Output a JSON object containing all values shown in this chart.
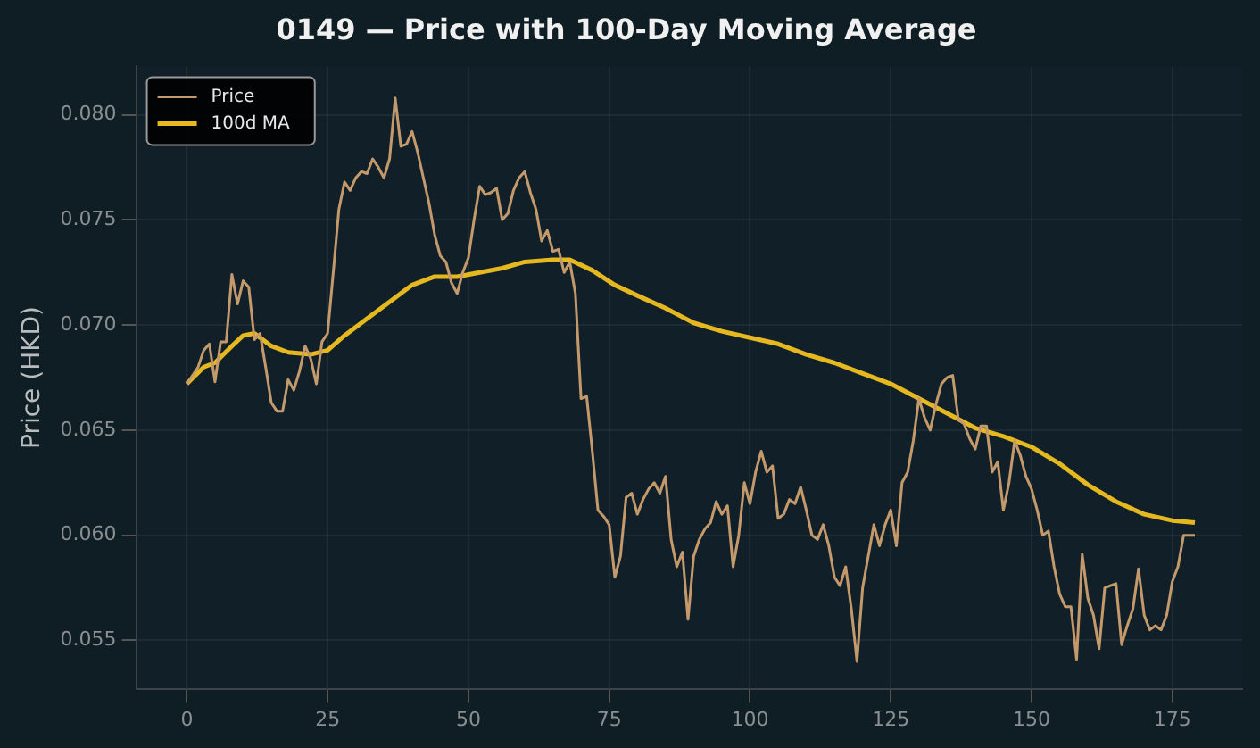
{
  "chart_data": {
    "type": "line",
    "title": "0149 — Price with 100-Day Moving Average",
    "ylabel": "Price (HKD)",
    "xlim": [
      -9,
      187.4
    ],
    "xticks": [
      0,
      25,
      50,
      75,
      100,
      125,
      150,
      175
    ],
    "ylim": [
      0.0527,
      0.0823
    ],
    "yticks": [
      {
        "value": 0.055,
        "label": "0.055"
      },
      {
        "value": 0.06,
        "label": "0.060"
      },
      {
        "value": 0.065,
        "label": "0.065"
      },
      {
        "value": 0.07,
        "label": "0.070"
      },
      {
        "value": 0.075,
        "label": "0.075"
      },
      {
        "value": 0.08,
        "label": "0.080"
      }
    ],
    "grid": true,
    "legend": "top left",
    "marker": "none",
    "line_style": "solid",
    "series": [
      {
        "name": "Price",
        "color": "#c49a6c",
        "x": [
          0,
          2,
          3,
          4,
          5,
          6,
          7,
          8,
          9,
          10,
          11,
          12,
          13,
          14,
          15,
          16,
          17,
          18,
          19,
          20,
          21,
          22,
          23,
          24,
          25,
          26,
          27,
          28,
          29,
          30,
          31,
          32,
          33,
          34,
          35,
          36,
          37,
          38,
          39,
          40,
          41,
          42,
          43,
          44,
          45,
          46,
          47,
          48,
          49,
          50,
          51,
          52,
          53,
          54,
          55,
          56,
          57,
          58,
          59,
          60,
          61,
          62,
          63,
          64,
          65,
          66,
          67,
          68,
          69,
          70,
          71,
          72,
          73,
          74,
          75,
          76,
          77,
          78,
          79,
          80,
          81,
          82,
          83,
          84,
          85,
          86,
          87,
          88,
          89,
          90,
          91,
          92,
          93,
          94,
          95,
          96,
          97,
          98,
          99,
          100,
          101,
          102,
          103,
          104,
          105,
          106,
          107,
          108,
          109,
          110,
          111,
          112,
          113,
          114,
          115,
          116,
          117,
          118,
          119,
          120,
          121,
          122,
          123,
          124,
          125,
          126,
          127,
          128,
          129,
          130,
          131,
          132,
          133,
          134,
          135,
          136,
          137,
          138,
          139,
          140,
          141,
          142,
          143,
          144,
          145,
          146,
          147,
          148,
          149,
          150,
          151,
          152,
          153,
          154,
          155,
          156,
          157,
          158,
          159,
          160,
          161,
          162,
          163,
          164,
          165,
          166,
          167,
          168,
          169,
          170,
          171,
          172,
          173,
          174,
          175,
          176,
          177,
          178,
          179
        ],
        "values": [
          0.0672,
          0.068,
          0.0688,
          0.0691,
          0.0673,
          0.0692,
          0.0692,
          0.0724,
          0.071,
          0.0721,
          0.0718,
          0.0693,
          0.0696,
          0.068,
          0.0663,
          0.0659,
          0.0659,
          0.0674,
          0.0669,
          0.0678,
          0.069,
          0.0684,
          0.0672,
          0.0692,
          0.0696,
          0.0725,
          0.0755,
          0.0768,
          0.0764,
          0.077,
          0.0773,
          0.0772,
          0.0779,
          0.0775,
          0.077,
          0.0779,
          0.0808,
          0.0785,
          0.0786,
          0.0792,
          0.0782,
          0.077,
          0.0758,
          0.0743,
          0.0733,
          0.073,
          0.072,
          0.0715,
          0.0725,
          0.0732,
          0.075,
          0.0766,
          0.0762,
          0.0763,
          0.0765,
          0.075,
          0.0753,
          0.0764,
          0.077,
          0.0773,
          0.0763,
          0.0755,
          0.074,
          0.0745,
          0.0735,
          0.0736,
          0.0725,
          0.073,
          0.0715,
          0.0665,
          0.0666,
          0.064,
          0.0612,
          0.0609,
          0.0605,
          0.058,
          0.059,
          0.0618,
          0.062,
          0.061,
          0.0617,
          0.0622,
          0.0625,
          0.062,
          0.0628,
          0.0598,
          0.0585,
          0.0592,
          0.056,
          0.059,
          0.0598,
          0.0603,
          0.0606,
          0.0616,
          0.061,
          0.0614,
          0.0585,
          0.06,
          0.0625,
          0.0615,
          0.063,
          0.064,
          0.063,
          0.0633,
          0.0608,
          0.061,
          0.0617,
          0.0615,
          0.0623,
          0.0612,
          0.06,
          0.0598,
          0.0605,
          0.0595,
          0.058,
          0.0576,
          0.0585,
          0.0565,
          0.054,
          0.0575,
          0.059,
          0.0605,
          0.0595,
          0.0605,
          0.0612,
          0.0595,
          0.0625,
          0.063,
          0.0645,
          0.0665,
          0.0656,
          0.065,
          0.0662,
          0.0672,
          0.0675,
          0.0676,
          0.0655,
          0.0653,
          0.0646,
          0.0641,
          0.0652,
          0.0652,
          0.063,
          0.0635,
          0.0612,
          0.0625,
          0.0645,
          0.0638,
          0.0628,
          0.0622,
          0.0612,
          0.06,
          0.0602,
          0.0585,
          0.0572,
          0.0566,
          0.0566,
          0.0541,
          0.0591,
          0.057,
          0.0562,
          0.0546,
          0.0575,
          0.0576,
          0.0577,
          0.0548,
          0.0557,
          0.0565,
          0.0584,
          0.0562,
          0.0555,
          0.0557,
          0.0555,
          0.0562,
          0.0578,
          0.0585,
          0.06,
          0.06,
          0.06
        ]
      },
      {
        "name": "100d MA",
        "color": "#e6b820",
        "x": [
          0,
          3,
          5,
          8,
          10,
          12,
          15,
          18,
          22,
          25,
          28,
          32,
          36,
          40,
          44,
          48,
          52,
          56,
          60,
          65,
          68,
          72,
          76,
          80,
          85,
          90,
          95,
          100,
          105,
          110,
          115,
          120,
          125,
          130,
          135,
          140,
          145,
          150,
          155,
          160,
          165,
          170,
          175,
          179
        ],
        "values": [
          0.0672,
          0.068,
          0.0682,
          0.069,
          0.0695,
          0.0696,
          0.069,
          0.0687,
          0.0686,
          0.0688,
          0.0695,
          0.0703,
          0.0711,
          0.0719,
          0.0723,
          0.0723,
          0.0725,
          0.0727,
          0.073,
          0.0731,
          0.0731,
          0.0726,
          0.0719,
          0.0714,
          0.0708,
          0.0701,
          0.0697,
          0.0694,
          0.0691,
          0.0686,
          0.0682,
          0.0677,
          0.0672,
          0.0665,
          0.0658,
          0.0651,
          0.0647,
          0.0642,
          0.0634,
          0.0624,
          0.0616,
          0.061,
          0.0607,
          0.0606
        ]
      }
    ]
  }
}
